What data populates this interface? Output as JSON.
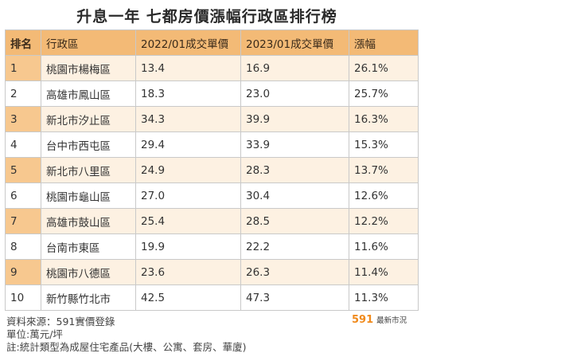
{
  "title": "升息一年 七都房價漲幅行政區排行榜",
  "table": {
    "headers": [
      "排名",
      "行政區",
      "2022/01成交單價",
      "2023/01成交單價",
      "漲幅"
    ],
    "rows": [
      [
        "1",
        "桃園市楊梅區",
        "13.4",
        "16.9",
        "26.1%"
      ],
      [
        "2",
        "高雄市鳳山區",
        "18.3",
        "23.0",
        "25.7%"
      ],
      [
        "3",
        "新北市汐止區",
        "34.3",
        "39.9",
        "16.3%"
      ],
      [
        "4",
        "台中市西屯區",
        "29.4",
        "33.9",
        "15.3%"
      ],
      [
        "5",
        "新北市八里區",
        "24.9",
        "28.3",
        "13.7%"
      ],
      [
        "6",
        "桃園市龜山區",
        "27.0",
        "30.4",
        "12.6%"
      ],
      [
        "7",
        "高雄市鼓山區",
        "25.4",
        "28.5",
        "12.2%"
      ],
      [
        "8",
        "台南市東區",
        "19.9",
        "22.2",
        "11.6%"
      ],
      [
        "9",
        "桃園市八德區",
        "23.6",
        "26.3",
        "11.4%"
      ],
      [
        "10",
        "新竹縣竹北市",
        "42.5",
        "47.3",
        "11.3%"
      ]
    ]
  },
  "notes": {
    "source": "資料來源：591實價登錄",
    "unit": "單位:萬元/坪",
    "remark": "註:統計類型為成屋住宅產品(大樓、公寓、套房、華廈)"
  },
  "logo": {
    "number": "591",
    "text": "最新市況"
  },
  "colors": {
    "header_bg": "#f3ba76",
    "odd_row_bg": "#fdf1e2",
    "odd_rank_bg": "#f7c88f",
    "logo_accent": "#f08a1c"
  }
}
